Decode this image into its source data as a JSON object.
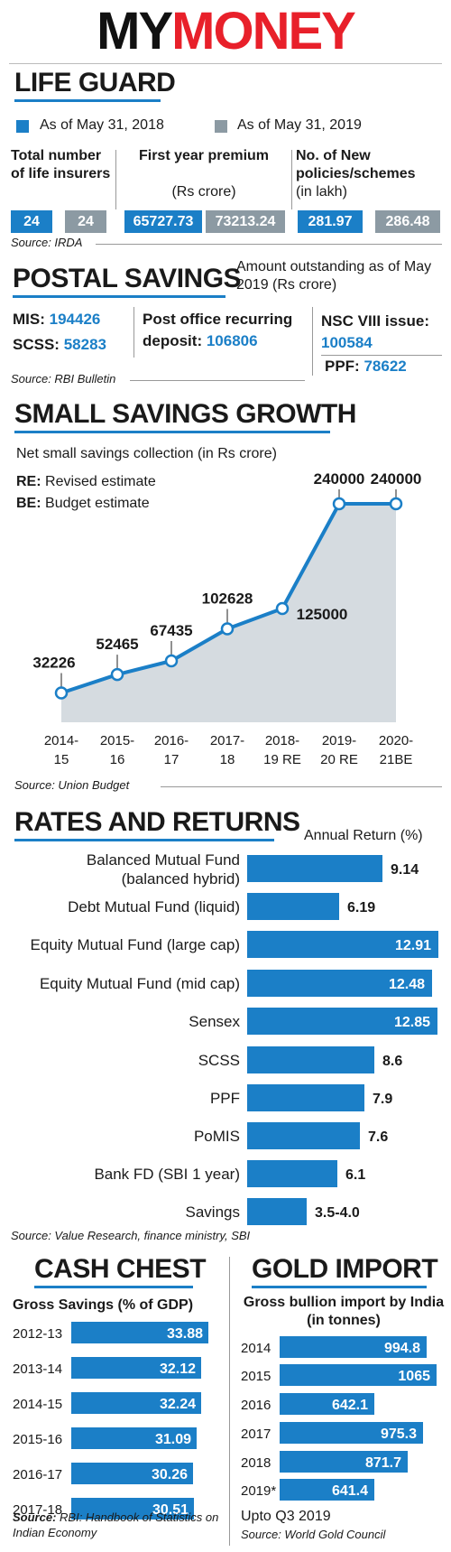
{
  "masthead": {
    "part1": "MY",
    "part2": "MONEY"
  },
  "life_guard": {
    "title": "LIFE GUARD",
    "legend": [
      {
        "label": "As of May 31, 2018",
        "color": "#1b7fc7"
      },
      {
        "label": "As of May 31, 2019",
        "color": "#8c9aa3"
      }
    ],
    "columns": [
      {
        "header_bold": "Total number of life insurers",
        "header_sub": "",
        "v2018": "24",
        "v2019": "24"
      },
      {
        "header_bold": "First year premium",
        "header_sub": "(Rs crore)",
        "v2018": "65727.73",
        "v2019": "73213.24"
      },
      {
        "header_bold": "No. of New policies/schemes",
        "header_sub": "(in lakh)",
        "v2018": "281.97",
        "v2019": "286.48"
      }
    ],
    "source": "Source: IRDA"
  },
  "postal_savings": {
    "title": "POSTAL SAVINGS",
    "note": "Amount outstanding as of May 2019 (Rs crore)",
    "mis_label": "MIS:",
    "mis_value": "194426",
    "scss_label": "SCSS:",
    "scss_value": "58283",
    "rd_label": "Post office recurring deposit:",
    "rd_value": "106806",
    "nsc_label": "NSC VIII issue:",
    "nsc_value": "100584",
    "ppf_label": "PPF:",
    "ppf_value": "78622",
    "source": "Source: RBI Bulletin"
  },
  "small_savings": {
    "title": "SMALL SAVINGS GROWTH",
    "subtitle": "Net small savings collection (in Rs crore)",
    "re_key": "RE:",
    "re_text": "Revised estimate",
    "be_key": "BE:",
    "be_text": "Budget estimate",
    "source": "Source: Union Budget"
  },
  "rates": {
    "title": "RATES AND RETURNS",
    "axis_label": "Annual Return (%)",
    "source": "Source: Value Research, finance ministry, SBI"
  },
  "cash_chest": {
    "title": "CASH CHEST",
    "subtitle": "Gross Savings (% of GDP)",
    "source_bold": "Source:",
    "source_rest": "RBI: Handbook of Statistics on Indian Economy"
  },
  "gold_import": {
    "title": "GOLD IMPORT",
    "subtitle": "Gross bullion import by India (in tonnes)",
    "note": "Upto Q3 2019",
    "source": "Source: World Gold Council"
  },
  "chart_data": [
    {
      "type": "area",
      "title": "SMALL SAVINGS GROWTH",
      "subtitle": "Net small savings collection (in Rs crore)",
      "categories": [
        "2014-15",
        "2015-16",
        "2016-17",
        "2017-18",
        "2018-19 RE",
        "2019-20 RE",
        "2020-21BE"
      ],
      "category_lines": [
        [
          "2014-",
          "15"
        ],
        [
          "2015-",
          "16"
        ],
        [
          "2016-",
          "17"
        ],
        [
          "2017-",
          "18"
        ],
        [
          "2018-",
          "19 RE"
        ],
        [
          "2019-",
          "20 RE"
        ],
        [
          "2020-",
          "21BE"
        ]
      ],
      "values": [
        32226,
        52465,
        67435,
        102628,
        125000,
        240000,
        240000
      ],
      "ylim": [
        0,
        260000
      ],
      "line_color": "#1b7fc7",
      "fill_color": "#d5dbe0"
    },
    {
      "type": "bar",
      "title": "RATES AND RETURNS",
      "xlabel": "Annual Return (%)",
      "categories": [
        [
          "Balanced Mutual Fund",
          "(balanced hybrid)"
        ],
        [
          "Debt Mutual Fund (liquid)"
        ],
        [
          "Equity Mutual Fund (large cap)"
        ],
        [
          "Equity Mutual Fund (mid cap)"
        ],
        [
          "Sensex"
        ],
        [
          "SCSS"
        ],
        [
          "PPF"
        ],
        [
          "PoMIS"
        ],
        [
          "Bank FD (SBI 1 year)"
        ],
        [
          "Savings"
        ]
      ],
      "values": [
        9.14,
        6.19,
        12.91,
        12.48,
        12.85,
        8.6,
        7.9,
        7.6,
        6.1,
        4.0
      ],
      "labels": [
        "9.14",
        "6.19",
        "12.91",
        "12.48",
        "12.85",
        "8.6",
        "7.9",
        "7.6",
        "6.1",
        "3.5-4.0"
      ],
      "xlim": [
        0,
        12.91
      ],
      "color": "#1b7fc7"
    },
    {
      "type": "bar",
      "title": "CASH CHEST",
      "subtitle": "Gross Savings (% of GDP)",
      "categories": [
        "2012-13",
        "2013-14",
        "2014-15",
        "2015-16",
        "2016-17",
        "2017-18"
      ],
      "values": [
        33.88,
        32.12,
        32.24,
        31.09,
        30.26,
        30.51
      ],
      "labels": [
        "33.88",
        "32.12",
        "32.24",
        "31.09",
        "30.26",
        "30.51"
      ],
      "color": "#1b7fc7"
    },
    {
      "type": "bar",
      "title": "GOLD IMPORT",
      "subtitle": "Gross bullion import by India (in tonnes)",
      "categories": [
        "2014",
        "2015",
        "2016",
        "2017",
        "2018",
        "2019*"
      ],
      "values": [
        994.8,
        1065,
        642.1,
        975.3,
        871.7,
        641.4
      ],
      "labels": [
        "994.8",
        "1065",
        "642.1",
        "975.3",
        "871.7",
        "641.4"
      ],
      "color": "#1b7fc7"
    }
  ]
}
